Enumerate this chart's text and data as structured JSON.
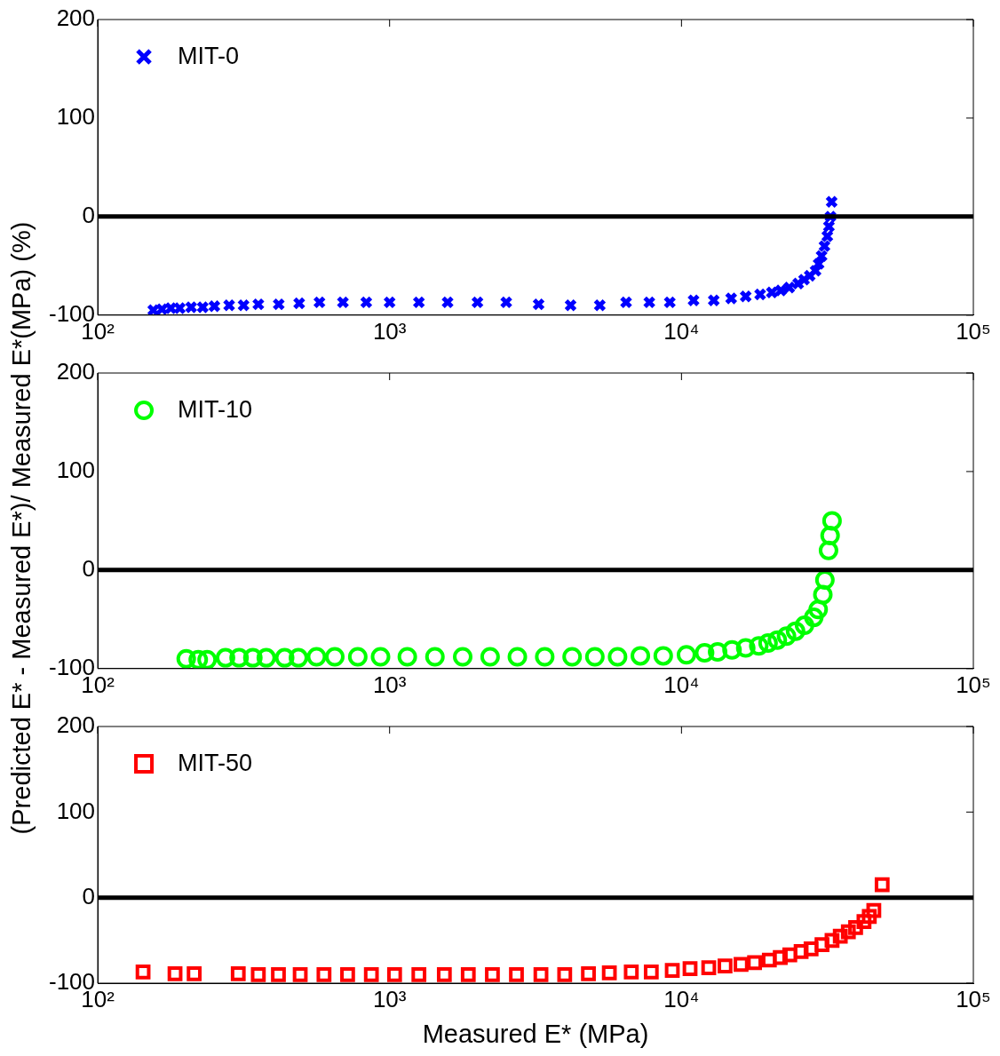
{
  "chart_data": [
    {
      "type": "scatter",
      "ylabel": "(Predicted E* - Measured E*)/ Measured E*(MPa) (%)",
      "legend": "top left",
      "marker": "cross",
      "grid": false,
      "log": "x",
      "xlim": [
        100,
        100000
      ],
      "xticks": [
        {
          "value": 100,
          "label": "10²"
        },
        {
          "value": 1000,
          "label": "10³"
        },
        {
          "value": 10000,
          "label": "10⁴"
        },
        {
          "value": 100000,
          "label": "10⁵"
        }
      ],
      "ylim": [
        -100,
        200
      ],
      "yticks": [
        -100,
        0,
        100,
        200
      ],
      "ref_lines": [
        {
          "axis": "y",
          "value": 0,
          "color": "#000000"
        }
      ],
      "x": [
        155,
        166,
        178,
        191,
        209,
        229,
        251,
        282,
        316,
        355,
        417,
        490,
        575,
        692,
        832,
        1000,
        1260,
        1580,
        2000,
        2510,
        3240,
        4170,
        5250,
        6460,
        7760,
        9120,
        11000,
        12900,
        14800,
        16600,
        18600,
        20400,
        21900,
        23400,
        25100,
        26300,
        27500,
        28800,
        29500,
        30200,
        30900,
        31600,
        32000,
        32400,
        32700
      ],
      "series": [
        {
          "name": "MIT-0",
          "color": "#0000ff",
          "values": [
            -95,
            -94,
            -93,
            -93,
            -92,
            -92,
            -91,
            -90,
            -90,
            -89,
            -89,
            -88,
            -87,
            -87,
            -87,
            -87,
            -87,
            -87,
            -87,
            -87,
            -89,
            -90,
            -90,
            -87,
            -87,
            -87,
            -85,
            -85,
            -83,
            -81,
            -79,
            -77,
            -75,
            -72,
            -68,
            -64,
            -60,
            -55,
            -48,
            -40,
            -30,
            -20,
            -10,
            0,
            15
          ]
        }
      ]
    },
    {
      "type": "scatter",
      "legend": "top left",
      "marker": "circle",
      "grid": false,
      "log": "x",
      "xlim": [
        100,
        100000
      ],
      "xticks": [
        {
          "value": 100,
          "label": "10²"
        },
        {
          "value": 1000,
          "label": "10³"
        },
        {
          "value": 10000,
          "label": "10⁴"
        },
        {
          "value": 100000,
          "label": "10⁵"
        }
      ],
      "ylim": [
        -100,
        200
      ],
      "yticks": [
        -100,
        0,
        100,
        200
      ],
      "ref_lines": [
        {
          "axis": "y",
          "value": 0,
          "color": "#000000"
        }
      ],
      "x": [
        201,
        221,
        237,
        274,
        305,
        340,
        378,
        437,
        487,
        562,
        649,
        778,
        931,
        1150,
        1430,
        1780,
        2210,
        2740,
        3400,
        4220,
        5050,
        6040,
        7230,
        8660,
        10400,
        12000,
        13300,
        14900,
        16600,
        18400,
        19800,
        21300,
        22900,
        24600,
        26400,
        28400,
        29400,
        30500,
        31000,
        31400,
        31900,
        32300,
        32800
      ],
      "series": [
        {
          "name": "MIT-10",
          "color": "#00ff00",
          "values": [
            -90,
            -91,
            -91,
            -89,
            -89,
            -89,
            -89,
            -89,
            -89,
            -88,
            -88,
            -88,
            -88,
            -88,
            -88,
            -88,
            -88,
            -88,
            -88,
            -88,
            -88,
            -88,
            -87,
            -87,
            -86,
            -84,
            -83,
            -81,
            -79,
            -77,
            -74,
            -71,
            -67,
            -62,
            -56,
            -48,
            -40,
            -25,
            -10,
            null,
            20,
            35,
            50
          ]
        }
      ]
    },
    {
      "type": "scatter",
      "xlabel": "Measured E* (MPa)",
      "legend": "top left",
      "marker": "square",
      "grid": false,
      "log": "x",
      "xlim": [
        100,
        100000
      ],
      "xticks": [
        {
          "value": 100,
          "label": "10²"
        },
        {
          "value": 1000,
          "label": "10³"
        },
        {
          "value": 10000,
          "label": "10⁴"
        },
        {
          "value": 100000,
          "label": "10⁵"
        }
      ],
      "ylim": [
        -100,
        200
      ],
      "yticks": [
        -100,
        0,
        100,
        200
      ],
      "ref_lines": [
        {
          "axis": "y",
          "value": 0,
          "color": "#000000"
        }
      ],
      "x": [
        143,
        184,
        214,
        303,
        355,
        416,
        494,
        596,
        718,
        866,
        1040,
        1260,
        1540,
        1860,
        2250,
        2720,
        3300,
        3980,
        4800,
        5660,
        6730,
        7880,
        9300,
        10700,
        12400,
        14100,
        16000,
        17800,
        20000,
        21800,
        23500,
        25700,
        27800,
        30300,
        32800,
        35000,
        37300,
        39500,
        42200,
        44000,
        45600,
        47600,
        48700
      ],
      "series": [
        {
          "name": "MIT-50",
          "color": "#ff0000",
          "values": [
            -87,
            -89,
            -89,
            -89,
            -90,
            -90,
            -90,
            -90,
            -90,
            -90,
            -90,
            -90,
            -90,
            -90,
            -90,
            -90,
            -90,
            -90,
            -89,
            -88,
            -87,
            -87,
            -85,
            -83,
            -82,
            -80,
            -78,
            -76,
            -73,
            -70,
            -67,
            -63,
            -60,
            -55,
            -50,
            -45,
            -40,
            -35,
            -28,
            -22,
            -15,
            null,
            15
          ]
        }
      ]
    }
  ]
}
